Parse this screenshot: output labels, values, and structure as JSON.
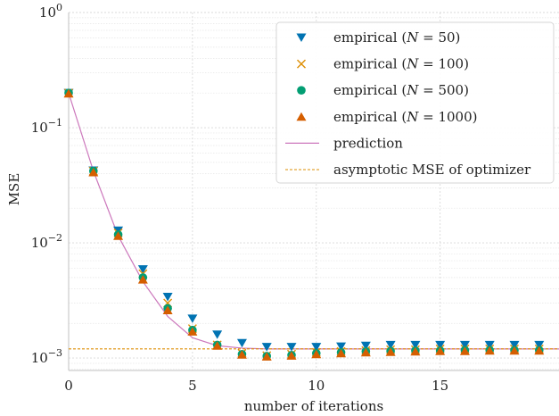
{
  "chart_data": {
    "type": "scatter",
    "xlabel": "number of iterations",
    "ylabel": "MSE",
    "xlim": [
      0,
      19.8
    ],
    "ylim": [
      0.00078,
      1.0
    ],
    "yscale": "log",
    "grid": true,
    "legend_position": "top-right",
    "x_ticks": [
      {
        "value": 0,
        "label": "0"
      },
      {
        "value": 5,
        "label": "5"
      },
      {
        "value": 10,
        "label": "10"
      },
      {
        "value": 15,
        "label": "15"
      }
    ],
    "y_ticks": [
      {
        "value": 0.001,
        "base": "10",
        "exp": "−3"
      },
      {
        "value": 0.01,
        "base": "10",
        "exp": "−2"
      },
      {
        "value": 0.1,
        "base": "10",
        "exp": "−1"
      },
      {
        "value": 1,
        "base": "10",
        "exp": "0"
      }
    ],
    "x": [
      0,
      1,
      2,
      3,
      4,
      5,
      6,
      7,
      8,
      9,
      10,
      11,
      12,
      13,
      14,
      15,
      16,
      17,
      18,
      19,
      20
    ],
    "series": [
      {
        "name": "empirical (N = 50)",
        "marker": "triangle-down",
        "color": "#0173b2",
        "values": [
          0.2,
          0.0425,
          0.0128,
          0.0059,
          0.0034,
          0.0022,
          0.0016,
          0.00135,
          0.00125,
          0.00125,
          0.00125,
          0.00126,
          0.00128,
          0.0013,
          0.0013,
          0.0013,
          0.0013,
          0.0013,
          0.0013,
          0.0013,
          0.0013
        ]
      },
      {
        "name": "empirical (N = 100)",
        "marker": "x",
        "color": "#de8f05",
        "values": [
          0.2,
          0.042,
          0.0122,
          0.0054,
          0.003,
          0.0018,
          0.0013,
          0.0011,
          0.00105,
          0.00108,
          0.00112,
          0.00114,
          0.00116,
          0.00118,
          0.00118,
          0.0012,
          0.0012,
          0.0012,
          0.0012,
          0.0012,
          0.0012
        ]
      },
      {
        "name": "empirical (N = 500)",
        "marker": "circle",
        "color": "#029e73",
        "values": [
          0.2,
          0.042,
          0.0118,
          0.005,
          0.0027,
          0.00175,
          0.0013,
          0.00108,
          0.00104,
          0.00106,
          0.0011,
          0.00112,
          0.00114,
          0.00115,
          0.00116,
          0.00116,
          0.00117,
          0.00117,
          0.00117,
          0.00117,
          0.00117
        ]
      },
      {
        "name": "empirical (N = 1000)",
        "marker": "triangle-up",
        "color": "#d55e00",
        "values": [
          0.198,
          0.041,
          0.0115,
          0.0048,
          0.0026,
          0.0017,
          0.00128,
          0.00107,
          0.00103,
          0.00105,
          0.00108,
          0.0011,
          0.00112,
          0.00113,
          0.00114,
          0.00115,
          0.00115,
          0.00116,
          0.00116,
          0.00116,
          0.00116
        ]
      },
      {
        "name": "prediction",
        "marker": "line",
        "color": "#cc78bc",
        "values": [
          0.2,
          0.042,
          0.0115,
          0.0046,
          0.0023,
          0.0015,
          0.00128,
          0.00122,
          0.0012,
          0.0012,
          0.0012,
          0.0012,
          0.0012,
          0.0012,
          0.0012,
          0.0012,
          0.0012,
          0.0012,
          0.0012,
          0.0012,
          0.0012
        ]
      },
      {
        "name": "asymptotic MSE of optimizer",
        "marker": "dashed-line",
        "color": "#de8f05",
        "constant": 0.0012
      }
    ]
  },
  "legend": {
    "items": [
      {
        "marker": "triangle-down",
        "color": "#0173b2",
        "prefix": "empirical (",
        "var": "N",
        "rest": " = 50)"
      },
      {
        "marker": "x",
        "color": "#de8f05",
        "prefix": "empirical (",
        "var": "N",
        "rest": " = 100)"
      },
      {
        "marker": "circle",
        "color": "#029e73",
        "prefix": "empirical (",
        "var": "N",
        "rest": " = 500)"
      },
      {
        "marker": "triangle-up",
        "color": "#d55e00",
        "prefix": "empirical (",
        "var": "N",
        "rest": " = 1000)"
      },
      {
        "marker": "line",
        "color": "#cc78bc",
        "prefix": "prediction",
        "var": "",
        "rest": ""
      },
      {
        "marker": "dashed-line",
        "color": "#de8f05",
        "prefix": "asymptotic MSE of optimizer",
        "var": "",
        "rest": ""
      }
    ]
  }
}
